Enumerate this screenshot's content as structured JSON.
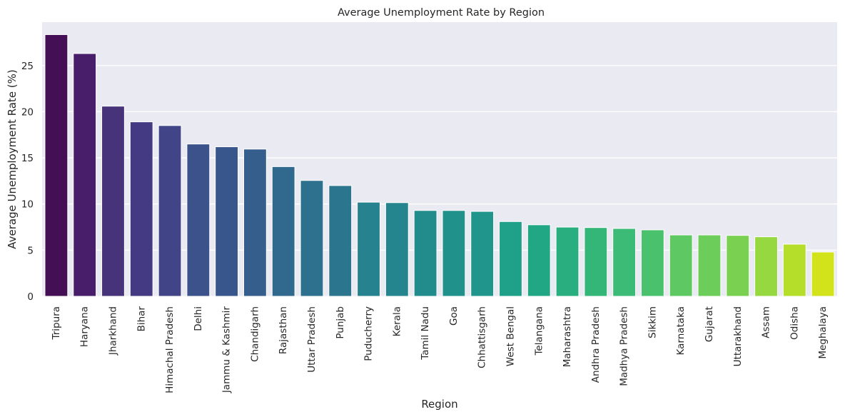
{
  "chart_data": {
    "type": "bar",
    "title": "Average Unemployment Rate by Region",
    "xlabel": "Region",
    "ylabel": "Average Unemployment Rate (%)",
    "ylim": [
      0,
      29.7
    ],
    "yticks": [
      0,
      5,
      10,
      15,
      20,
      25
    ],
    "grid": true,
    "categories": [
      "Tripura",
      "Haryana",
      "Jharkhand",
      "Bihar",
      "Himachal Pradesh",
      "Delhi",
      "Jammu & Kashmir",
      "Chandigarh",
      "Rajasthan",
      "Uttar Pradesh",
      "Punjab",
      "Puducherry",
      "Kerala",
      "Tamil Nadu",
      "Goa",
      "Chhattisgarh",
      "West Bengal",
      "Telangana",
      "Maharashtra",
      "Andhra Pradesh",
      "Madhya Pradesh",
      "Sikkim",
      "Karnataka",
      "Gujarat",
      "Uttarakhand",
      "Assam",
      "Odisha",
      "Meghalaya"
    ],
    "values": [
      28.35,
      26.3,
      20.6,
      18.9,
      18.5,
      16.5,
      16.2,
      15.95,
      14.05,
      12.55,
      12.0,
      10.2,
      10.15,
      9.3,
      9.3,
      9.2,
      8.1,
      7.75,
      7.5,
      7.45,
      7.35,
      7.2,
      6.65,
      6.65,
      6.6,
      6.45,
      5.65,
      4.8
    ],
    "colors": [
      "#440f54",
      "#481e6b",
      "#473379",
      "#443a83",
      "#414487",
      "#3b528b",
      "#39568c",
      "#355e8d",
      "#31688e",
      "#2d718e",
      "#2b758e",
      "#26828e",
      "#25858e",
      "#228c8d",
      "#21918c",
      "#1f958b",
      "#1fa088",
      "#22a785",
      "#29af7f",
      "#34b679",
      "#3bbb75",
      "#4ac16d",
      "#5ec962",
      "#6ccd5a",
      "#7ad151",
      "#95d840",
      "#b5de2b",
      "#d2e21b"
    ]
  }
}
